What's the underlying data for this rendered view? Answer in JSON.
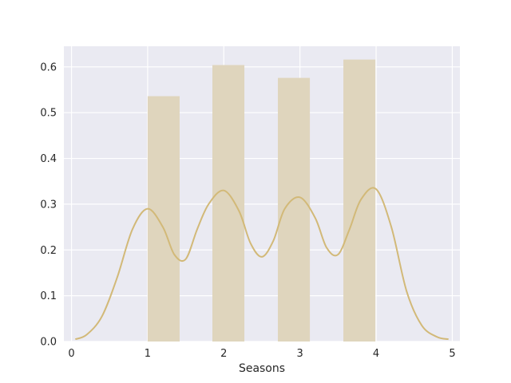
{
  "chart_data": {
    "type": "bar",
    "xlabel": "Seasons",
    "ylabel": "",
    "xlim": [
      -0.1,
      5.1
    ],
    "ylim": [
      0,
      0.645
    ],
    "grid": true,
    "x_ticks": [
      0,
      1,
      2,
      3,
      4,
      5
    ],
    "x_tick_labels": [
      "0",
      "1",
      "2",
      "3",
      "4",
      "5"
    ],
    "y_ticks": [
      0,
      0.1,
      0.2,
      0.3,
      0.4,
      0.5,
      0.6
    ],
    "y_tick_labels": [
      "0.0",
      "0.1",
      "0.2",
      "0.3",
      "0.4",
      "0.5",
      "0.6"
    ],
    "colors": {
      "background": "#eaeaf2",
      "grid": "#ffffff",
      "bar": "#dfd5bd",
      "kde": "#d2b978"
    },
    "bars": [
      {
        "x0": 1.0,
        "x1": 1.42,
        "value": 0.536
      },
      {
        "x0": 1.85,
        "x1": 2.27,
        "value": 0.604
      },
      {
        "x0": 2.71,
        "x1": 3.13,
        "value": 0.576
      },
      {
        "x0": 3.57,
        "x1": 3.99,
        "value": 0.616
      }
    ],
    "kde": {
      "x": [
        0.05,
        0.2,
        0.4,
        0.6,
        0.8,
        1.0,
        1.2,
        1.35,
        1.5,
        1.65,
        1.8,
        2.0,
        2.2,
        2.35,
        2.5,
        2.65,
        2.8,
        3.0,
        3.2,
        3.35,
        3.5,
        3.65,
        3.8,
        4.0,
        4.2,
        4.4,
        4.6,
        4.8,
        4.95
      ],
      "y": [
        0.005,
        0.015,
        0.055,
        0.14,
        0.245,
        0.29,
        0.25,
        0.19,
        0.18,
        0.245,
        0.3,
        0.33,
        0.285,
        0.215,
        0.185,
        0.22,
        0.29,
        0.315,
        0.27,
        0.205,
        0.19,
        0.245,
        0.31,
        0.333,
        0.25,
        0.11,
        0.035,
        0.01,
        0.005
      ]
    }
  }
}
